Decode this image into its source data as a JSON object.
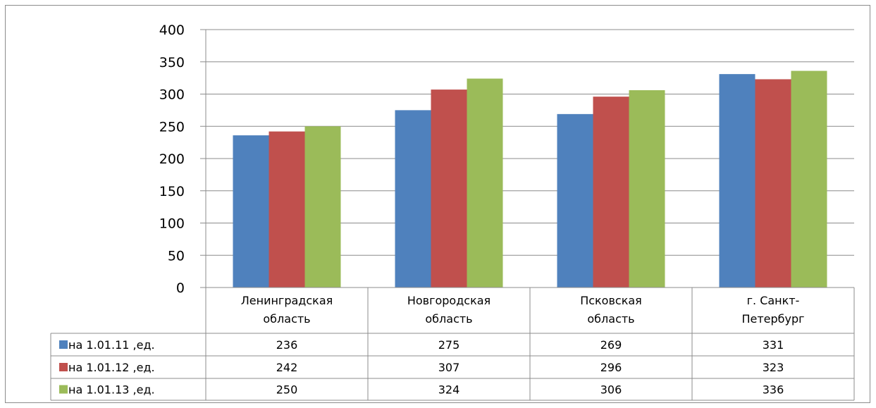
{
  "chart_data": {
    "type": "bar",
    "categories": [
      [
        "Ленинградская",
        "область"
      ],
      [
        "Новгородская",
        "область"
      ],
      [
        "Псковская",
        "область"
      ],
      [
        "г. Санкт-",
        "Петербург"
      ]
    ],
    "series": [
      {
        "name": "на 1.01.11 ,ед.",
        "color": "#4f81bd",
        "values": [
          236,
          275,
          269,
          331
        ]
      },
      {
        "name": "на 1.01.12 ,ед.",
        "color": "#c0504d",
        "values": [
          242,
          307,
          296,
          323
        ]
      },
      {
        "name": "на 1.01.13 ,ед.",
        "color": "#9bbb59",
        "values": [
          250,
          324,
          306,
          336
        ]
      }
    ],
    "ylim": [
      0,
      400
    ],
    "yticks": [
      "0",
      "50",
      "100",
      "150",
      "200",
      "250",
      "300",
      "350",
      "400"
    ],
    "grid": true,
    "legend": "data-table"
  }
}
